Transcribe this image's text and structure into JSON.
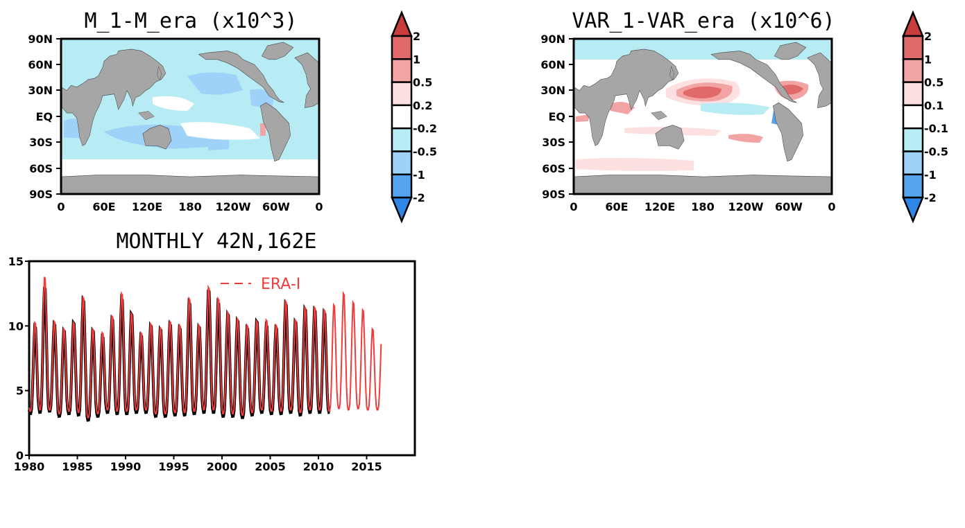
{
  "chart_data": [
    {
      "type": "heatmap",
      "title": "M_1-M_era (x10^3)",
      "y_ticks": [
        "90N",
        "60N",
        "30N",
        "EQ",
        "30S",
        "60S",
        "90S"
      ],
      "x_ticks": [
        "0",
        "60E",
        "120E",
        "180",
        "120W",
        "60W",
        "0"
      ],
      "colorbar": {
        "labels": [
          "2",
          "1",
          "0.5",
          "0.2",
          "-0.2",
          "-0.5",
          "-1",
          "-2"
        ],
        "colors": [
          "#c83c3c",
          "#e06a6a",
          "#f2a4a4",
          "#fde0e0",
          "#ffffff",
          "#b8ecf4",
          "#9fd2f8",
          "#56a4ee",
          "#2f86e6"
        ]
      }
    },
    {
      "type": "heatmap",
      "title": "VAR_1-VAR_era (x10^6)",
      "y_ticks": [
        "90N",
        "60N",
        "30N",
        "EQ",
        "30S",
        "60S",
        "90S"
      ],
      "x_ticks": [
        "0",
        "60E",
        "120E",
        "180",
        "120W",
        "60W",
        "0"
      ],
      "colorbar": {
        "labels": [
          "2",
          "1",
          "0.5",
          "0.1",
          "-0.1",
          "-0.5",
          "-1",
          "-2"
        ],
        "colors": [
          "#c83c3c",
          "#e06a6a",
          "#f2a4a4",
          "#fde0e0",
          "#ffffff",
          "#b8ecf4",
          "#9fd2f8",
          "#56a4ee",
          "#2f86e6"
        ]
      }
    },
    {
      "type": "line",
      "title": "MONTHLY 42N,162E",
      "xlim": [
        1980,
        2020
      ],
      "ylim": [
        0,
        15
      ],
      "x_ticks": [
        "1980",
        "1985",
        "1990",
        "1995",
        "2000",
        "2005",
        "2010",
        "2015"
      ],
      "y_ticks": [
        "0",
        "5",
        "10",
        "15"
      ],
      "series": [
        {
          "name": "",
          "color": "#000000",
          "x_range": [
            1980.0,
            2011.2
          ],
          "annual_max": [
            10.1,
            13.2,
            10.3,
            9.8,
            10.4,
            12.2,
            9.8,
            9.3,
            10.7,
            12.3,
            11.1,
            9.4,
            10.2,
            9.9,
            10.3,
            10.0,
            12.0,
            10.1,
            13.0,
            12.0,
            11.1,
            10.6,
            10.0,
            10.5,
            10.2,
            10.0,
            11.9,
            10.5,
            11.5,
            11.4,
            11.2
          ],
          "annual_min": [
            3.2,
            3.3,
            3.4,
            3.0,
            3.2,
            3.1,
            2.7,
            3.0,
            3.3,
            3.2,
            3.2,
            3.3,
            3.3,
            3.0,
            3.0,
            3.1,
            3.1,
            3.2,
            3.3,
            3.3,
            3.0,
            3.0,
            2.9,
            3.1,
            3.3,
            3.2,
            3.2,
            3.3,
            3.1,
            3.3,
            3.3
          ]
        },
        {
          "name": "ERA-I",
          "color": "#f03c3c",
          "x_range": [
            1980.0,
            2016.5
          ],
          "annual_max": [
            10.4,
            14.0,
            10.5,
            9.9,
            10.4,
            12.4,
            9.9,
            9.6,
            10.9,
            12.7,
            11.1,
            9.6,
            10.3,
            10.0,
            10.5,
            10.2,
            12.3,
            10.2,
            13.2,
            12.3,
            11.2,
            10.7,
            10.2,
            10.5,
            10.6,
            10.2,
            12.1,
            10.6,
            11.6,
            11.6,
            11.4,
            11.8,
            12.7,
            12.0,
            11.4,
            9.9
          ],
          "annual_min": [
            3.4,
            3.5,
            3.5,
            3.2,
            3.4,
            3.3,
            2.9,
            3.2,
            3.5,
            3.4,
            3.4,
            3.5,
            3.5,
            3.2,
            3.2,
            3.3,
            3.3,
            3.4,
            3.5,
            3.5,
            3.2,
            3.2,
            3.1,
            3.3,
            3.5,
            3.4,
            3.4,
            3.5,
            3.3,
            3.5,
            3.5,
            3.4,
            3.6,
            3.5,
            3.6,
            3.5
          ],
          "end_value": 8.6
        }
      ]
    }
  ]
}
